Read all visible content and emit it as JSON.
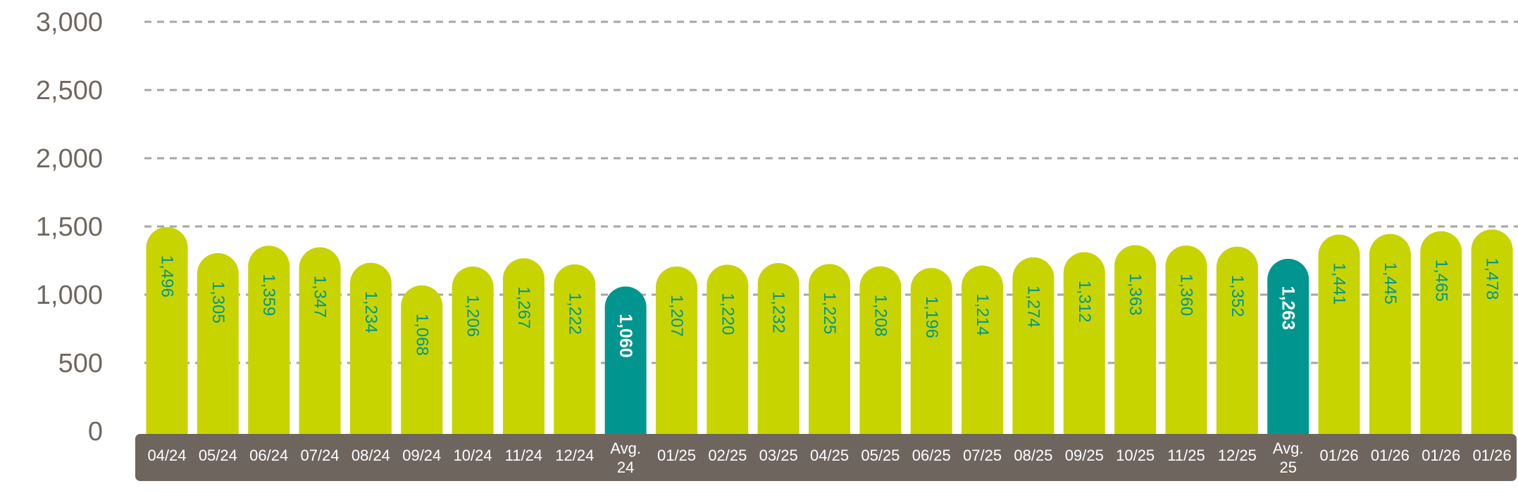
{
  "chart_data": {
    "type": "bar",
    "title": "",
    "xlabel": "",
    "ylabel": "",
    "ylim": [
      0,
      3000
    ],
    "yticks": [
      "0",
      "500",
      "1,000",
      "1,500",
      "2,000",
      "2,500",
      "3,000"
    ],
    "ytick_values": [
      0,
      500,
      1000,
      1500,
      2000,
      2500,
      3000
    ],
    "grid": true,
    "categories": [
      [
        "04/24"
      ],
      [
        "05/24"
      ],
      [
        "06/24"
      ],
      [
        "07/24"
      ],
      [
        "08/24"
      ],
      [
        "09/24"
      ],
      [
        "10/24"
      ],
      [
        "11/24"
      ],
      [
        "12/24"
      ],
      [
        "Avg.",
        "24"
      ],
      [
        "01/25"
      ],
      [
        "02/25"
      ],
      [
        "03/25"
      ],
      [
        "04/25"
      ],
      [
        "05/25"
      ],
      [
        "06/25"
      ],
      [
        "07/25"
      ],
      [
        "08/25"
      ],
      [
        "09/25"
      ],
      [
        "10/25"
      ],
      [
        "11/25"
      ],
      [
        "12/25"
      ],
      [
        "Avg.",
        "25"
      ],
      [
        "01/26"
      ],
      [
        "01/26"
      ],
      [
        "01/26"
      ],
      [
        "01/26"
      ]
    ],
    "values": [
      1496,
      1305,
      1359,
      1347,
      1234,
      1068,
      1206,
      1267,
      1222,
      1060,
      1207,
      1220,
      1232,
      1225,
      1208,
      1196,
      1214,
      1274,
      1312,
      1363,
      1360,
      1352,
      1263,
      1441,
      1445,
      1465,
      1478
    ],
    "value_labels": [
      "1,496",
      "1,305",
      "1,359",
      "1,347",
      "1,234",
      "1,068",
      "1,206",
      "1,267",
      "1,222",
      "1,060",
      "1,207",
      "1,220",
      "1,232",
      "1,225",
      "1,208",
      "1,196",
      "1,214",
      "1,274",
      "1,312",
      "1,363",
      "1,360",
      "1,352",
      "1,263",
      "1,441",
      "1,445",
      "1,465",
      "1,478"
    ],
    "highlight_indices": [
      9,
      22
    ],
    "colors": {
      "bar": "#c8d400",
      "highlight": "#00968f",
      "value_text": "#00968f",
      "highlight_text": "#ffffff",
      "category_band": "#6e655f",
      "grid": "#a6a6a6",
      "tick_text": "#6f6761"
    }
  }
}
